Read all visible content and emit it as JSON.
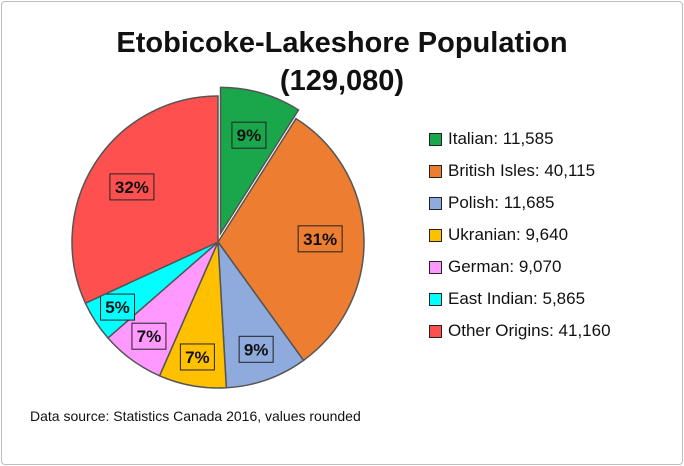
{
  "chart_data": {
    "type": "pie",
    "title": "Etobicoke-Lakeshore Population",
    "subtitle": "(129,080)",
    "series": [
      {
        "name": "Italian",
        "value": 11585,
        "value_label": "11,585",
        "percent_label": "9%",
        "color": "#1aa64a",
        "exploded": true
      },
      {
        "name": "British Isles",
        "value": 40115,
        "value_label": "40,115",
        "percent_label": "31%",
        "color": "#ed7d31",
        "exploded": false
      },
      {
        "name": "Polish",
        "value": 11685,
        "value_label": "11,685",
        "percent_label": "9%",
        "color": "#8faadc",
        "exploded": false
      },
      {
        "name": "Ukranian",
        "value": 9640,
        "value_label": "9,640",
        "percent_label": "7%",
        "color": "#ffc000",
        "exploded": false
      },
      {
        "name": "German",
        "value": 9070,
        "value_label": "9,070",
        "percent_label": "7%",
        "color": "#ff99ff",
        "exploded": false
      },
      {
        "name": "East Indian",
        "value": 5865,
        "value_label": "5,865",
        "percent_label": "5%",
        "color": "#00ffff",
        "exploded": false
      },
      {
        "name": "Other Origins",
        "value": 41160,
        "value_label": "41,160",
        "percent_label": "32%",
        "color": "#ff5050",
        "exploded": false
      }
    ],
    "legend_position": "right",
    "source_note": "Data source: Statistics Canada 2016, values rounded"
  }
}
